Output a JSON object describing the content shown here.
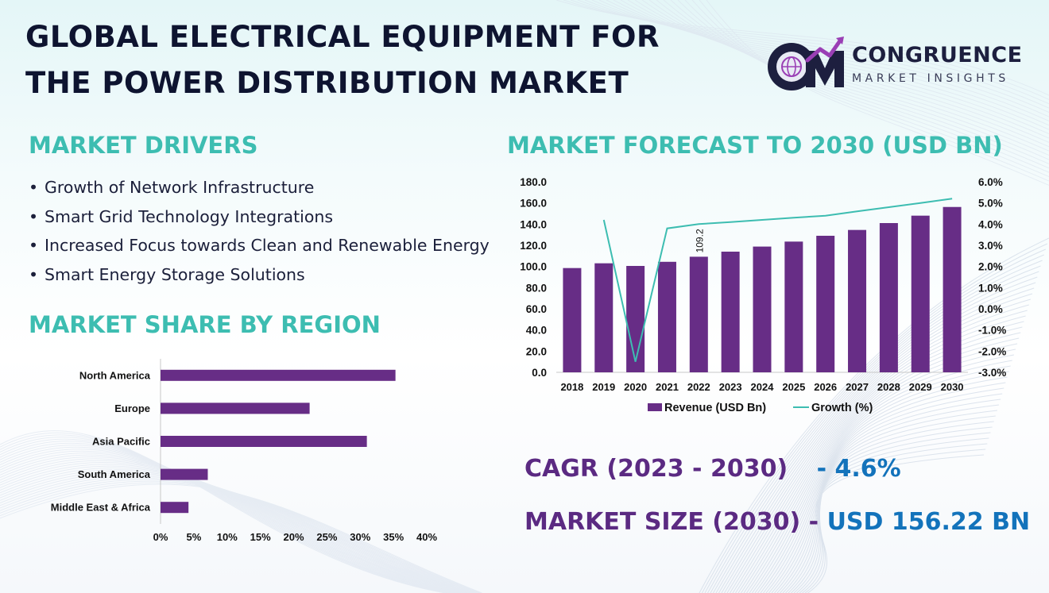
{
  "title": {
    "line1": "GLOBAL ELECTRICAL EQUIPMENT FOR",
    "line2": "THE POWER DISTRIBUTION MARKET"
  },
  "logo": {
    "name": "CONGRUENCE",
    "tagline": "MARKET INSIGHTS",
    "mark_text": "CM",
    "colors": {
      "dark": "#1d1f3f",
      "accent": "#9a3fb5",
      "teal": "#3dbdb1"
    }
  },
  "drivers": {
    "heading": "MARKET DRIVERS",
    "bullet": "•",
    "items": [
      "Growth of Network Infrastructure",
      "Smart Grid Technology Integrations",
      "Increased Focus towards Clean and Renewable Energy",
      "Smart Energy Storage Solutions"
    ]
  },
  "region": {
    "heading": "MARKET SHARE BY REGION"
  },
  "forecast": {
    "heading": "MARKET FORECAST TO 2030 (USD BN)"
  },
  "kpis": {
    "cagr_label": "CAGR (2023 - 2030)",
    "cagr_sep": "-",
    "cagr_value": "4.6%",
    "size_label": "MARKET SIZE (2030)",
    "size_sep": "-",
    "size_value": "USD 156.22 BN"
  },
  "colors": {
    "heading": "#3dbdb1",
    "bar": "#672d86",
    "line": "#3dbdb1",
    "kpi_label": "#5b2a82",
    "kpi_value": "#1373bb",
    "title": "#0e1430"
  },
  "chart_data": [
    {
      "type": "bar",
      "orientation": "horizontal",
      "title": "",
      "categories": [
        "North America",
        "Europe",
        "Asia Pacific",
        "South America",
        "Middle East & Africa"
      ],
      "values": [
        35.3,
        22.4,
        31.0,
        7.1,
        4.2
      ],
      "x_ticks": [
        "0%",
        "5%",
        "10%",
        "15%",
        "20%",
        "25%",
        "30%",
        "35%",
        "40%"
      ],
      "xlim": [
        0,
        40
      ],
      "grid": false
    },
    {
      "type": "bar+line",
      "title": "",
      "categories": [
        "2018",
        "2019",
        "2020",
        "2021",
        "2022",
        "2023",
        "2024",
        "2025",
        "2026",
        "2027",
        "2028",
        "2029",
        "2030"
      ],
      "series": [
        {
          "name": "Revenue (USD Bn)",
          "type": "bar",
          "axis": "left",
          "values": [
            98.5,
            103.0,
            100.5,
            104.4,
            109.2,
            114.0,
            118.8,
            123.5,
            129.0,
            134.5,
            141.0,
            148.0,
            156.2
          ]
        },
        {
          "name": "Growth (%)",
          "type": "line",
          "axis": "right",
          "values": [
            null,
            4.2,
            -2.5,
            3.8,
            4.0,
            4.1,
            4.2,
            4.3,
            4.4,
            4.6,
            4.8,
            5.0,
            5.2
          ]
        }
      ],
      "data_labels": [
        {
          "category": "2022",
          "text": "109.2"
        }
      ],
      "y_left_ticks": [
        "0.0",
        "20.0",
        "40.0",
        "60.0",
        "80.0",
        "100.0",
        "120.0",
        "140.0",
        "160.0",
        "180.0"
      ],
      "y_right_ticks": [
        "-3.0%",
        "-2.0%",
        "-1.0%",
        "0.0%",
        "1.0%",
        "2.0%",
        "3.0%",
        "4.0%",
        "5.0%",
        "6.0%"
      ],
      "ylim_left": [
        0,
        180
      ],
      "ylim_right": [
        -3,
        6
      ],
      "legend_position": "bottom",
      "grid": false
    }
  ]
}
